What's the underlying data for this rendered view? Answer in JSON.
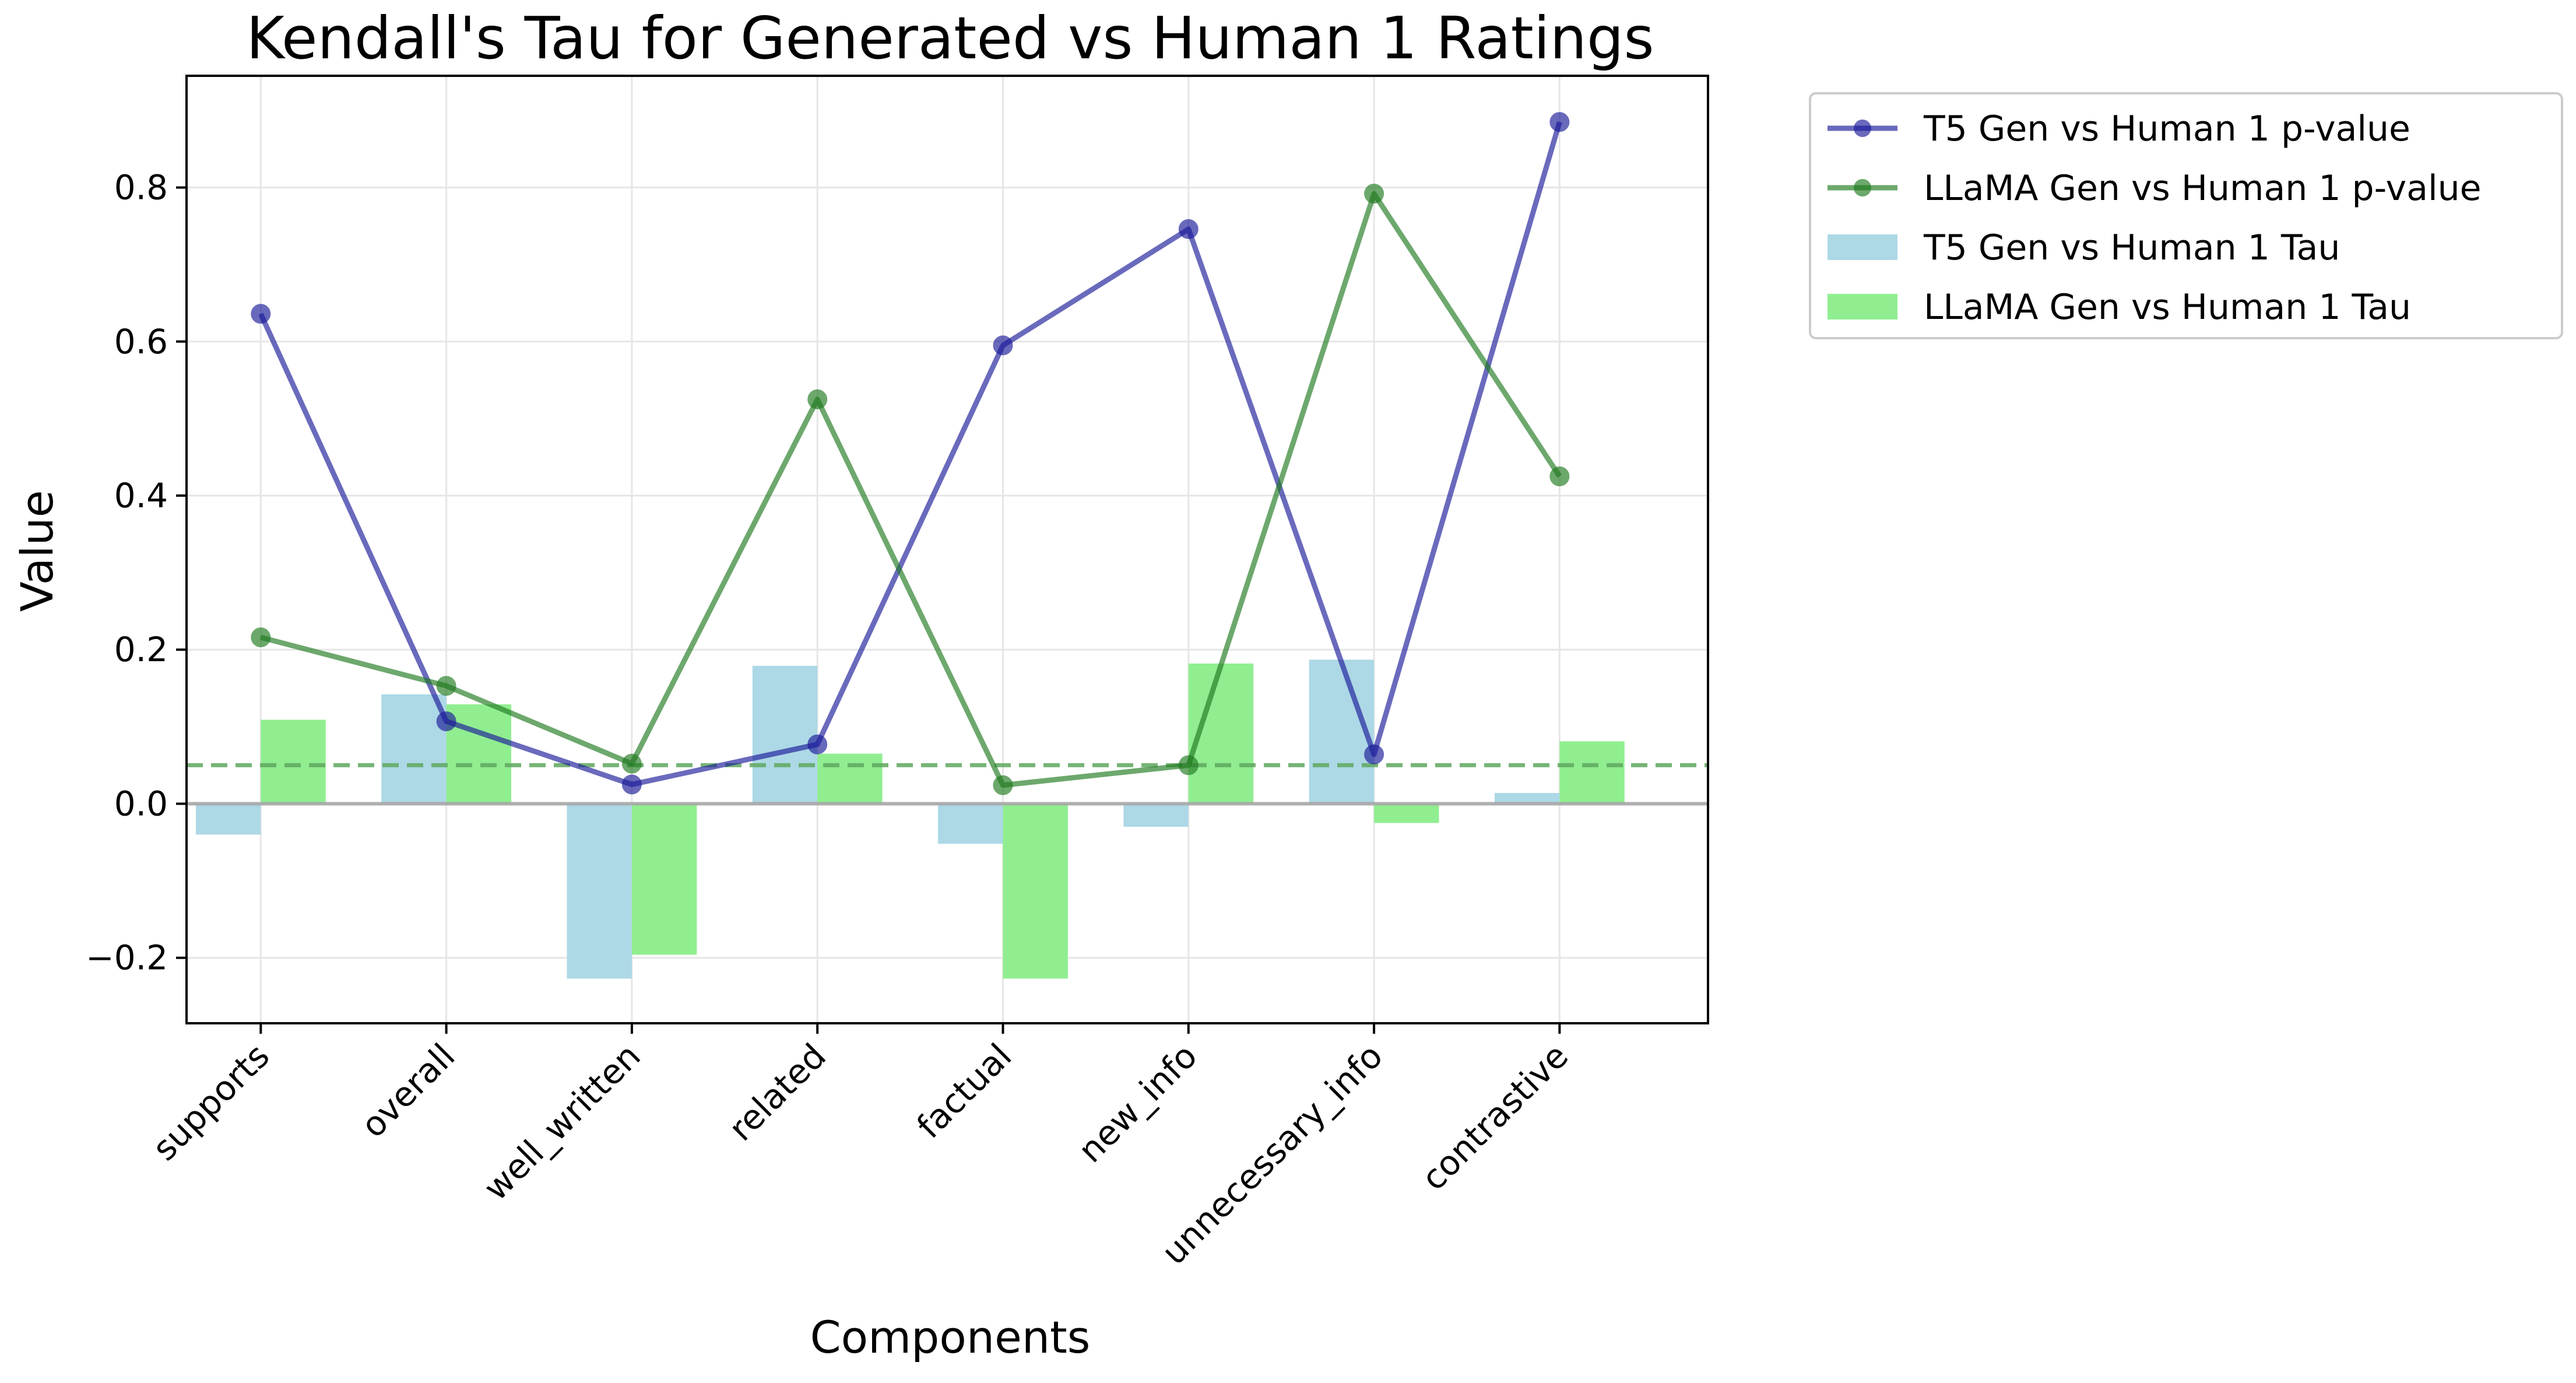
{
  "chart_data": {
    "type": "bar",
    "title": "Kendall's Tau for Generated vs Human 1 Ratings",
    "xlabel": "Components",
    "ylabel": "Value",
    "categories": [
      "supports",
      "overall",
      "well_written",
      "related",
      "factual",
      "new_info",
      "unnecessary_info",
      "contrastive"
    ],
    "ylim": [
      -0.285,
      0.945
    ],
    "yticks": [
      -0.2,
      0.0,
      0.2,
      0.4,
      0.6,
      0.8
    ],
    "ytick_labels": [
      "−0.2",
      "0.0",
      "0.2",
      "0.4",
      "0.6",
      "0.8"
    ],
    "grid": true,
    "legend_position": "outside-top-right",
    "reference_lines": [
      {
        "y": 0.0,
        "style": "solid",
        "color": "#a8a8a8"
      },
      {
        "y": 0.05,
        "style": "dashed",
        "color": "#5fa85f"
      }
    ],
    "series": [
      {
        "name": "T5 Gen vs Human 1 Tau",
        "kind": "bar",
        "color": "#add8e6",
        "values": [
          -0.04,
          0.142,
          -0.227,
          0.179,
          -0.052,
          -0.03,
          0.187,
          0.014
        ]
      },
      {
        "name": "LLaMA Gen vs Human 1 Tau",
        "kind": "bar",
        "color": "#90ee90",
        "values": [
          0.109,
          0.129,
          -0.196,
          0.065,
          -0.227,
          0.182,
          -0.025,
          0.081
        ]
      },
      {
        "name": "T5 Gen vs Human 1 p-value",
        "kind": "line",
        "color": "#1a1a99",
        "values": [
          0.636,
          0.107,
          0.025,
          0.077,
          0.595,
          0.746,
          0.064,
          0.885
        ]
      },
      {
        "name": "LLaMA Gen vs Human 1 p-value",
        "kind": "line",
        "color": "#1f7a1f",
        "values": [
          0.216,
          0.153,
          0.052,
          0.525,
          0.024,
          0.05,
          0.792,
          0.425
        ]
      }
    ],
    "legend_order": [
      "T5 Gen vs Human 1 p-value",
      "LLaMA Gen vs Human 1 p-value",
      "T5 Gen vs Human 1 Tau",
      "LLaMA Gen vs Human 1 Tau"
    ]
  }
}
